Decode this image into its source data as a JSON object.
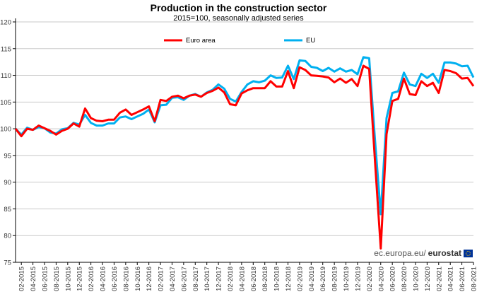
{
  "chart_data": {
    "type": "line",
    "title": "Production in the construction sector",
    "subtitle": "2015=100, seasonally adjusted series",
    "xlabel": "",
    "ylabel": "",
    "ylim": [
      75,
      120
    ],
    "yticks": [
      75,
      80,
      85,
      90,
      95,
      100,
      105,
      110,
      115,
      120
    ],
    "grid": "horizontal",
    "legend": "top-center",
    "x": [
      "01-2015",
      "02-2015",
      "03-2015",
      "04-2015",
      "05-2015",
      "06-2015",
      "07-2015",
      "08-2015",
      "09-2015",
      "10-2015",
      "11-2015",
      "12-2015",
      "01-2016",
      "02-2016",
      "03-2016",
      "04-2016",
      "05-2016",
      "06-2016",
      "07-2016",
      "08-2016",
      "09-2016",
      "10-2016",
      "11-2016",
      "12-2016",
      "01-2017",
      "02-2017",
      "03-2017",
      "04-2017",
      "05-2017",
      "06-2017",
      "07-2017",
      "08-2017",
      "09-2017",
      "10-2017",
      "11-2017",
      "12-2017",
      "01-2018",
      "02-2018",
      "03-2018",
      "04-2018",
      "05-2018",
      "06-2018",
      "07-2018",
      "08-2018",
      "09-2018",
      "10-2018",
      "11-2018",
      "12-2018",
      "01-2019",
      "02-2019",
      "03-2019",
      "04-2019",
      "05-2019",
      "06-2019",
      "07-2019",
      "08-2019",
      "09-2019",
      "10-2019",
      "11-2019",
      "12-2019",
      "01-2020",
      "02-2020",
      "03-2020",
      "04-2020",
      "05-2020",
      "06-2020",
      "07-2020",
      "08-2020",
      "09-2020",
      "10-2020",
      "11-2020",
      "12-2020",
      "01-2021",
      "02-2021",
      "03-2021",
      "04-2021",
      "05-2021",
      "06-2021",
      "07-2021",
      "08-2021"
    ],
    "xticks": [
      "02-2015",
      "04-2015",
      "06-2015",
      "08-2015",
      "10-2015",
      "12-2015",
      "02-2016",
      "04-2016",
      "06-2016",
      "08-2016",
      "10-2016",
      "12-2016",
      "02-2017",
      "04-2017",
      "06-2017",
      "08-2017",
      "10-2017",
      "12-2017",
      "02-2018",
      "04-2018",
      "06-2018",
      "08-2018",
      "10-2018",
      "12-2018",
      "02-2019",
      "04-2019",
      "06-2019",
      "08-2019",
      "10-2019",
      "12-2019",
      "02-2020",
      "04-2020",
      "06-2020",
      "08-2020",
      "10-2020",
      "12-2020",
      "02-2021",
      "04-2021",
      "06-2021",
      "08-2021"
    ],
    "series": [
      {
        "name": "Euro area",
        "color": "#ff0000",
        "values": [
          100,
          98.6,
          100,
          99.8,
          100.6,
          100.1,
          99.6,
          98.9,
          99.6,
          100,
          101,
          100.4,
          103.8,
          102,
          101.5,
          101.4,
          101.7,
          101.7,
          103,
          103.6,
          102.6,
          103.1,
          103.6,
          104.2,
          101.4,
          105.4,
          105.2,
          106,
          106.2,
          105.7,
          106.2,
          106.4,
          106,
          106.7,
          107.1,
          107.7,
          106.8,
          104.6,
          104.4,
          106.6,
          107.2,
          107.6,
          107.6,
          107.6,
          108.9,
          107.9,
          107.9,
          110.8,
          107.6,
          111.5,
          111,
          110,
          109.9,
          109.8,
          109.6,
          108.7,
          109.4,
          108.6,
          109.3,
          108,
          111.8,
          111.2,
          94,
          77.6,
          99,
          105.2,
          105.6,
          109.4,
          106.5,
          106.3,
          108.9,
          108,
          108.6,
          106.7,
          111,
          110.8,
          110.4,
          109.4,
          109.5,
          108
        ]
      },
      {
        "name": "EU",
        "color": "#00b0f0",
        "values": [
          100,
          98.9,
          100.2,
          99.8,
          100.3,
          100.1,
          99.3,
          99.1,
          99.9,
          100.1,
          101.1,
          100.8,
          102.6,
          101.1,
          100.6,
          100.6,
          101,
          101,
          102.1,
          102.3,
          101.8,
          102.3,
          102.8,
          103.6,
          101.2,
          104.4,
          104.5,
          105.8,
          105.9,
          105.4,
          106.2,
          106.5,
          106,
          106.8,
          107.3,
          108.3,
          107.5,
          105.6,
          105.1,
          106.9,
          108.3,
          108.9,
          108.7,
          109,
          110,
          109.5,
          109.6,
          111.8,
          109.3,
          112.8,
          112.7,
          111.6,
          111.4,
          110.8,
          111.4,
          110.7,
          111.3,
          110.7,
          111,
          110.2,
          113.4,
          113.2,
          98,
          84,
          102,
          106.7,
          107,
          110.5,
          108.3,
          108,
          110.3,
          109.5,
          110.3,
          108.6,
          112.4,
          112.4,
          112.2,
          111.7,
          111.8,
          109.6
        ]
      }
    ]
  },
  "branding": {
    "site": "ec.europa.eu/",
    "name": "eurostat"
  }
}
